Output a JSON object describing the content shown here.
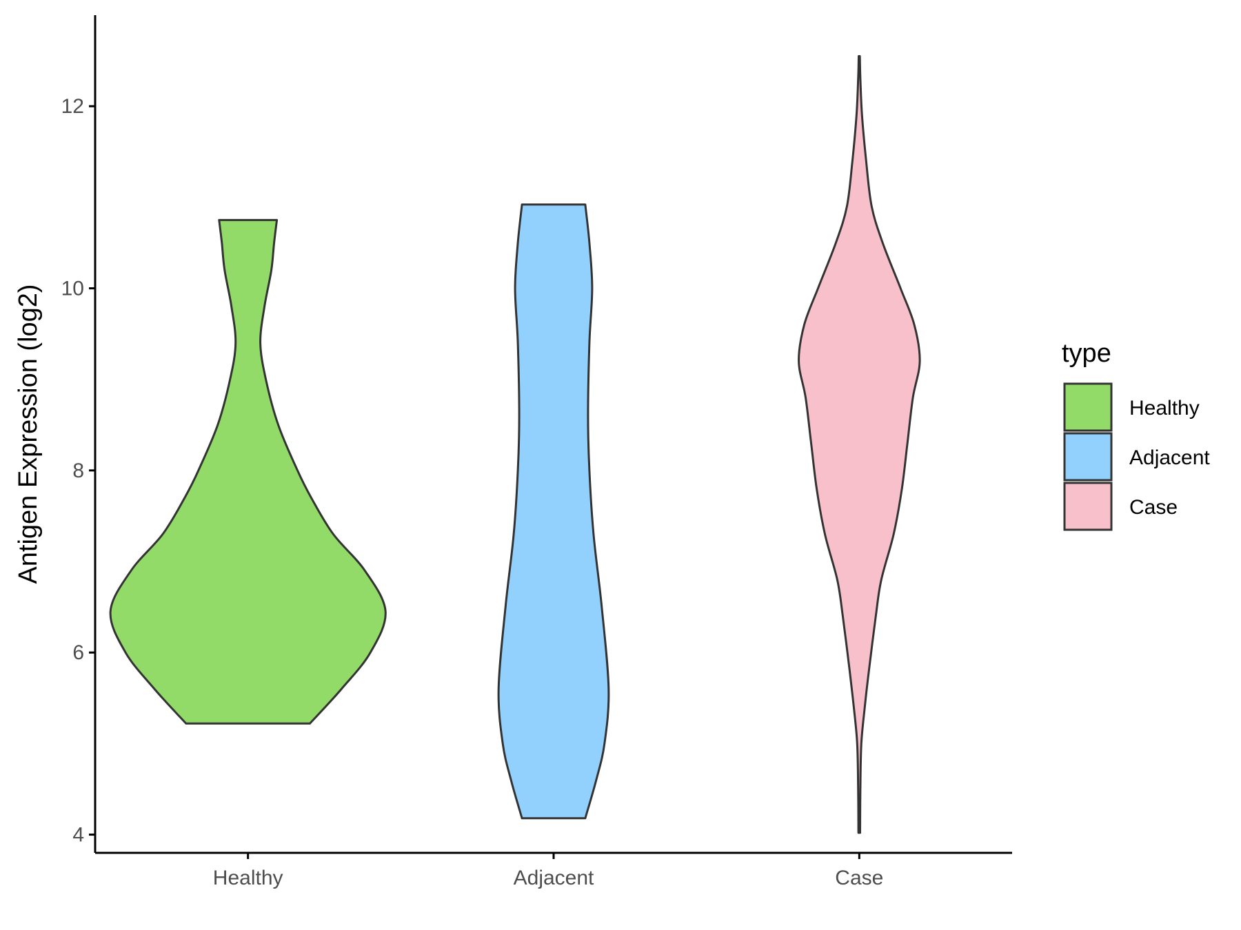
{
  "chart_data": {
    "type": "violin",
    "xlabel": "",
    "ylabel": "Antigen Expression (log2)",
    "ylim": [
      3.8,
      13.0
    ],
    "yticks": [
      4,
      6,
      8,
      10,
      12
    ],
    "ytick_labels": [
      "4",
      "6",
      "8",
      "10",
      "12"
    ],
    "categories": [
      "Healthy",
      "Adjacent",
      "Case"
    ],
    "grid": false,
    "legend": {
      "title": "type",
      "position": "right",
      "entries": [
        "Healthy",
        "Adjacent",
        "Case"
      ]
    },
    "colors": {
      "Healthy": "#93DB69",
      "Adjacent": "#92D1FE",
      "Case": "#F7C0CB",
      "outline": "#333333"
    },
    "series": [
      {
        "name": "Healthy",
        "min": 5.22,
        "max": 10.75,
        "density": [
          [
            5.22,
            0.45
          ],
          [
            5.6,
            0.68
          ],
          [
            6.0,
            0.89
          ],
          [
            6.45,
            1.0
          ],
          [
            6.9,
            0.85
          ],
          [
            7.3,
            0.62
          ],
          [
            7.7,
            0.46
          ],
          [
            8.0,
            0.36
          ],
          [
            8.5,
            0.22
          ],
          [
            9.0,
            0.13
          ],
          [
            9.4,
            0.09
          ],
          [
            9.8,
            0.12
          ],
          [
            10.2,
            0.17
          ],
          [
            10.5,
            0.19
          ],
          [
            10.75,
            0.21
          ]
        ]
      },
      {
        "name": "Adjacent",
        "min": 4.18,
        "max": 10.92,
        "density": [
          [
            4.18,
            0.23
          ],
          [
            4.6,
            0.31
          ],
          [
            5.0,
            0.37
          ],
          [
            5.6,
            0.4
          ],
          [
            6.5,
            0.35
          ],
          [
            7.3,
            0.29
          ],
          [
            8.0,
            0.26
          ],
          [
            8.6,
            0.25
          ],
          [
            9.4,
            0.26
          ],
          [
            10.0,
            0.28
          ],
          [
            10.5,
            0.26
          ],
          [
            10.92,
            0.23
          ]
        ]
      },
      {
        "name": "Case",
        "min": 4.02,
        "max": 12.55,
        "density": [
          [
            4.02,
            0.006
          ],
          [
            4.5,
            0.008
          ],
          [
            5.0,
            0.015
          ],
          [
            5.4,
            0.04
          ],
          [
            5.8,
            0.07
          ],
          [
            6.4,
            0.12
          ],
          [
            6.8,
            0.16
          ],
          [
            7.3,
            0.25
          ],
          [
            7.8,
            0.31
          ],
          [
            8.3,
            0.35
          ],
          [
            8.8,
            0.39
          ],
          [
            9.2,
            0.44
          ],
          [
            9.6,
            0.4
          ],
          [
            10.0,
            0.3
          ],
          [
            10.5,
            0.17
          ],
          [
            10.9,
            0.09
          ],
          [
            11.4,
            0.05
          ],
          [
            11.9,
            0.02
          ],
          [
            12.3,
            0.008
          ],
          [
            12.55,
            0.004
          ]
        ]
      }
    ]
  }
}
